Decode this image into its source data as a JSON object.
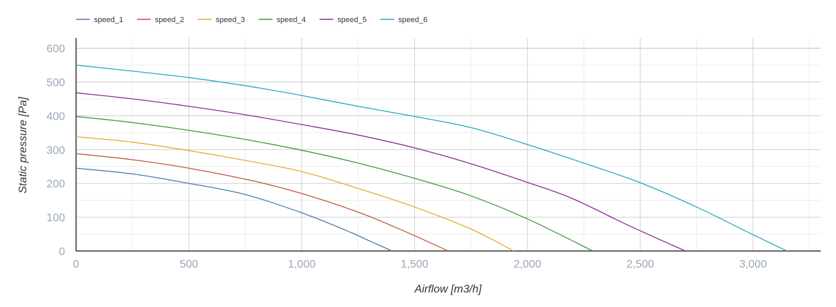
{
  "chart_data": {
    "type": "line",
    "xlabel": "Airflow [m3/h]",
    "ylabel": "Static pressure [Pa]",
    "xlim": [
      0,
      3300
    ],
    "ylim": [
      0,
      630
    ],
    "x_ticks": [
      0,
      500,
      1000,
      1500,
      2000,
      2500,
      3000
    ],
    "x_tick_labels": [
      "0",
      "500",
      "1,000",
      "1,500",
      "2,000",
      "2,500",
      "3,000"
    ],
    "y_ticks": [
      0,
      100,
      200,
      300,
      400,
      500,
      600
    ],
    "y_tick_labels": [
      "0",
      "100",
      "200",
      "300",
      "400",
      "500",
      "600"
    ],
    "grid": true,
    "legend_position": "top-left",
    "series": [
      {
        "name": "speed_1",
        "color": "#4e79a7",
        "points": [
          [
            0,
            245
          ],
          [
            250,
            228
          ],
          [
            500,
            200
          ],
          [
            750,
            167
          ],
          [
            1000,
            113
          ],
          [
            1200,
            60
          ],
          [
            1300,
            30
          ],
          [
            1400,
            0
          ]
        ]
      },
      {
        "name": "speed_2",
        "color": "#c0573a",
        "points": [
          [
            0,
            288
          ],
          [
            250,
            270
          ],
          [
            500,
            245
          ],
          [
            800,
            205
          ],
          [
            1000,
            170
          ],
          [
            1250,
            115
          ],
          [
            1450,
            60
          ],
          [
            1650,
            0
          ]
        ]
      },
      {
        "name": "speed_3",
        "color": "#e8a92f",
        "points": [
          [
            0,
            338
          ],
          [
            250,
            322
          ],
          [
            500,
            297
          ],
          [
            750,
            268
          ],
          [
            1000,
            235
          ],
          [
            1250,
            185
          ],
          [
            1500,
            130
          ],
          [
            1750,
            65
          ],
          [
            1940,
            0
          ]
        ]
      },
      {
        "name": "speed_4",
        "color": "#3a9a3a",
        "points": [
          [
            0,
            398
          ],
          [
            250,
            380
          ],
          [
            500,
            357
          ],
          [
            750,
            330
          ],
          [
            1000,
            298
          ],
          [
            1250,
            260
          ],
          [
            1500,
            215
          ],
          [
            1750,
            163
          ],
          [
            2000,
            95
          ],
          [
            2290,
            0
          ]
        ]
      },
      {
        "name": "speed_5",
        "color": "#8e2a8e",
        "points": [
          [
            0,
            468
          ],
          [
            250,
            450
          ],
          [
            500,
            428
          ],
          [
            750,
            403
          ],
          [
            1000,
            374
          ],
          [
            1250,
            343
          ],
          [
            1500,
            305
          ],
          [
            1750,
            258
          ],
          [
            2000,
            203
          ],
          [
            2200,
            155
          ],
          [
            2450,
            75
          ],
          [
            2700,
            0
          ]
        ]
      },
      {
        "name": "speed_6",
        "color": "#2aa6c2",
        "points": [
          [
            0,
            550
          ],
          [
            250,
            532
          ],
          [
            500,
            513
          ],
          [
            750,
            489
          ],
          [
            1000,
            460
          ],
          [
            1250,
            428
          ],
          [
            1500,
            398
          ],
          [
            1750,
            365
          ],
          [
            2000,
            315
          ],
          [
            2250,
            260
          ],
          [
            2500,
            202
          ],
          [
            2750,
            130
          ],
          [
            3000,
            48
          ],
          [
            3150,
            0
          ]
        ]
      }
    ]
  }
}
